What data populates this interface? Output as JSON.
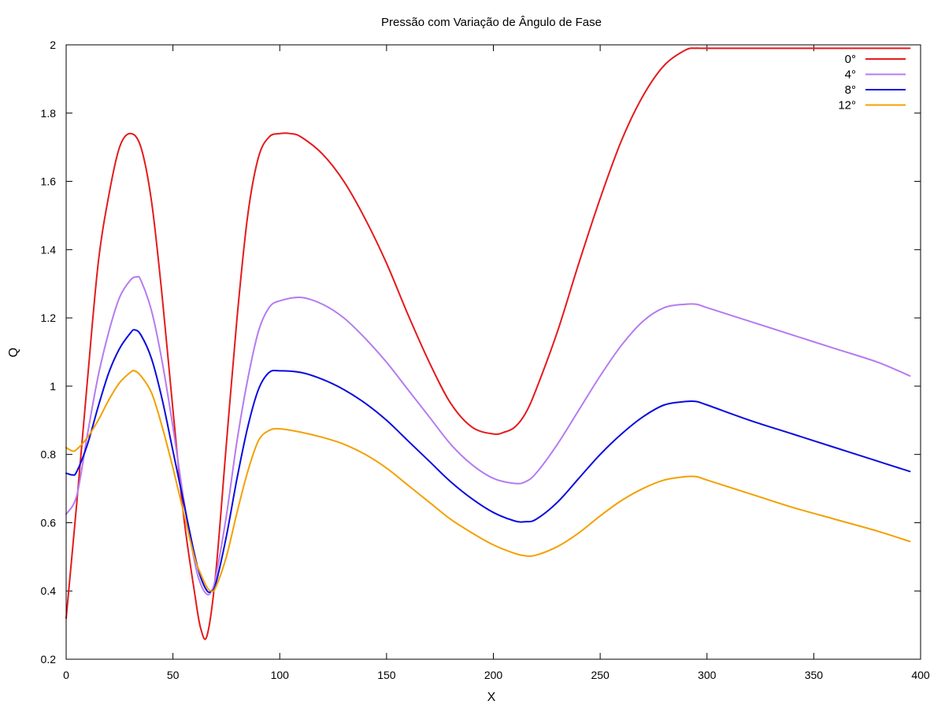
{
  "chart_data": {
    "type": "line",
    "title": "Pressão com Variação de Ângulo de Fase",
    "xlabel": "X",
    "ylabel": "Q",
    "xlim": [
      0,
      400
    ],
    "ylim": [
      0.2,
      2.0
    ],
    "xticks": [
      "0",
      "50",
      "100",
      "150",
      "200",
      "250",
      "300",
      "350",
      "400"
    ],
    "yticks": [
      "0.2",
      "0.4",
      "0.6",
      "0.8",
      "1",
      "1.2",
      "1.4",
      "1.6",
      "1.8",
      "2"
    ],
    "grid": false,
    "legend_position": "top-right",
    "series": [
      {
        "name": "0°",
        "color": "#e41a1c",
        "x": [
          0,
          5,
          10,
          15,
          20,
          25,
          30,
          35,
          40,
          45,
          50,
          55,
          60,
          63,
          66,
          70,
          75,
          80,
          85,
          90,
          95,
          100,
          105,
          110,
          120,
          130,
          140,
          150,
          160,
          170,
          180,
          190,
          200,
          205,
          210,
          215,
          220,
          230,
          240,
          250,
          260,
          270,
          280,
          290,
          295,
          300,
          350,
          395
        ],
        "y": [
          0.32,
          0.66,
          1.02,
          1.36,
          1.56,
          1.7,
          1.74,
          1.7,
          1.54,
          1.26,
          0.93,
          0.62,
          0.4,
          0.29,
          0.27,
          0.45,
          0.83,
          1.2,
          1.5,
          1.67,
          1.73,
          1.74,
          1.74,
          1.73,
          1.68,
          1.6,
          1.49,
          1.36,
          1.21,
          1.07,
          0.95,
          0.88,
          0.86,
          0.865,
          0.88,
          0.92,
          0.99,
          1.16,
          1.36,
          1.55,
          1.72,
          1.85,
          1.94,
          1.985,
          1.99,
          1.99,
          1.99,
          1.99
        ]
      },
      {
        "name": "4°",
        "color": "#b57bf0",
        "x": [
          0,
          5,
          10,
          15,
          20,
          25,
          30,
          33,
          35,
          40,
          45,
          50,
          55,
          60,
          63,
          66,
          68,
          70,
          75,
          80,
          85,
          90,
          95,
          100,
          110,
          120,
          130,
          140,
          150,
          160,
          170,
          180,
          190,
          200,
          210,
          215,
          220,
          230,
          240,
          250,
          260,
          270,
          280,
          290,
          295,
          300,
          320,
          340,
          360,
          380,
          395
        ],
        "y": [
          0.625,
          0.68,
          0.86,
          1.03,
          1.16,
          1.26,
          1.31,
          1.32,
          1.31,
          1.22,
          1.07,
          0.88,
          0.67,
          0.49,
          0.42,
          0.39,
          0.4,
          0.44,
          0.62,
          0.84,
          1.02,
          1.16,
          1.23,
          1.25,
          1.26,
          1.24,
          1.2,
          1.14,
          1.07,
          0.99,
          0.91,
          0.83,
          0.77,
          0.73,
          0.715,
          0.72,
          0.745,
          0.83,
          0.93,
          1.03,
          1.12,
          1.19,
          1.23,
          1.24,
          1.24,
          1.23,
          1.19,
          1.15,
          1.11,
          1.07,
          1.03
        ]
      },
      {
        "name": "8°",
        "color": "#0a0adf",
        "x": [
          0,
          3,
          5,
          10,
          15,
          20,
          25,
          30,
          32,
          35,
          40,
          45,
          50,
          55,
          60,
          63,
          66,
          68,
          70,
          75,
          80,
          85,
          90,
          95,
          100,
          110,
          120,
          130,
          140,
          150,
          160,
          170,
          180,
          190,
          200,
          210,
          215,
          220,
          230,
          240,
          250,
          260,
          270,
          280,
          290,
          295,
          300,
          320,
          340,
          360,
          380,
          395
        ],
        "y": [
          0.745,
          0.74,
          0.75,
          0.83,
          0.94,
          1.04,
          1.11,
          1.155,
          1.165,
          1.15,
          1.08,
          0.96,
          0.81,
          0.66,
          0.51,
          0.44,
          0.4,
          0.4,
          0.42,
          0.56,
          0.73,
          0.88,
          0.99,
          1.04,
          1.045,
          1.04,
          1.02,
          0.99,
          0.95,
          0.9,
          0.84,
          0.78,
          0.72,
          0.67,
          0.63,
          0.605,
          0.603,
          0.61,
          0.66,
          0.73,
          0.8,
          0.86,
          0.91,
          0.945,
          0.955,
          0.955,
          0.945,
          0.9,
          0.86,
          0.82,
          0.78,
          0.75
        ]
      },
      {
        "name": "12°",
        "color": "#f4a000",
        "x": [
          0,
          3,
          5,
          10,
          15,
          20,
          25,
          30,
          32,
          35,
          40,
          45,
          50,
          55,
          60,
          63,
          66,
          68,
          70,
          75,
          80,
          85,
          90,
          95,
          100,
          110,
          120,
          130,
          140,
          150,
          160,
          170,
          180,
          190,
          200,
          210,
          215,
          220,
          230,
          240,
          250,
          260,
          270,
          280,
          290,
          295,
          300,
          320,
          340,
          360,
          380,
          395
        ],
        "y": [
          0.82,
          0.81,
          0.815,
          0.85,
          0.9,
          0.96,
          1.01,
          1.04,
          1.045,
          1.03,
          0.98,
          0.88,
          0.76,
          0.63,
          0.5,
          0.45,
          0.41,
          0.4,
          0.41,
          0.5,
          0.63,
          0.75,
          0.84,
          0.87,
          0.875,
          0.865,
          0.85,
          0.83,
          0.8,
          0.76,
          0.71,
          0.66,
          0.61,
          0.57,
          0.535,
          0.51,
          0.503,
          0.505,
          0.53,
          0.57,
          0.62,
          0.665,
          0.7,
          0.725,
          0.735,
          0.735,
          0.725,
          0.685,
          0.645,
          0.61,
          0.575,
          0.545
        ]
      }
    ]
  }
}
